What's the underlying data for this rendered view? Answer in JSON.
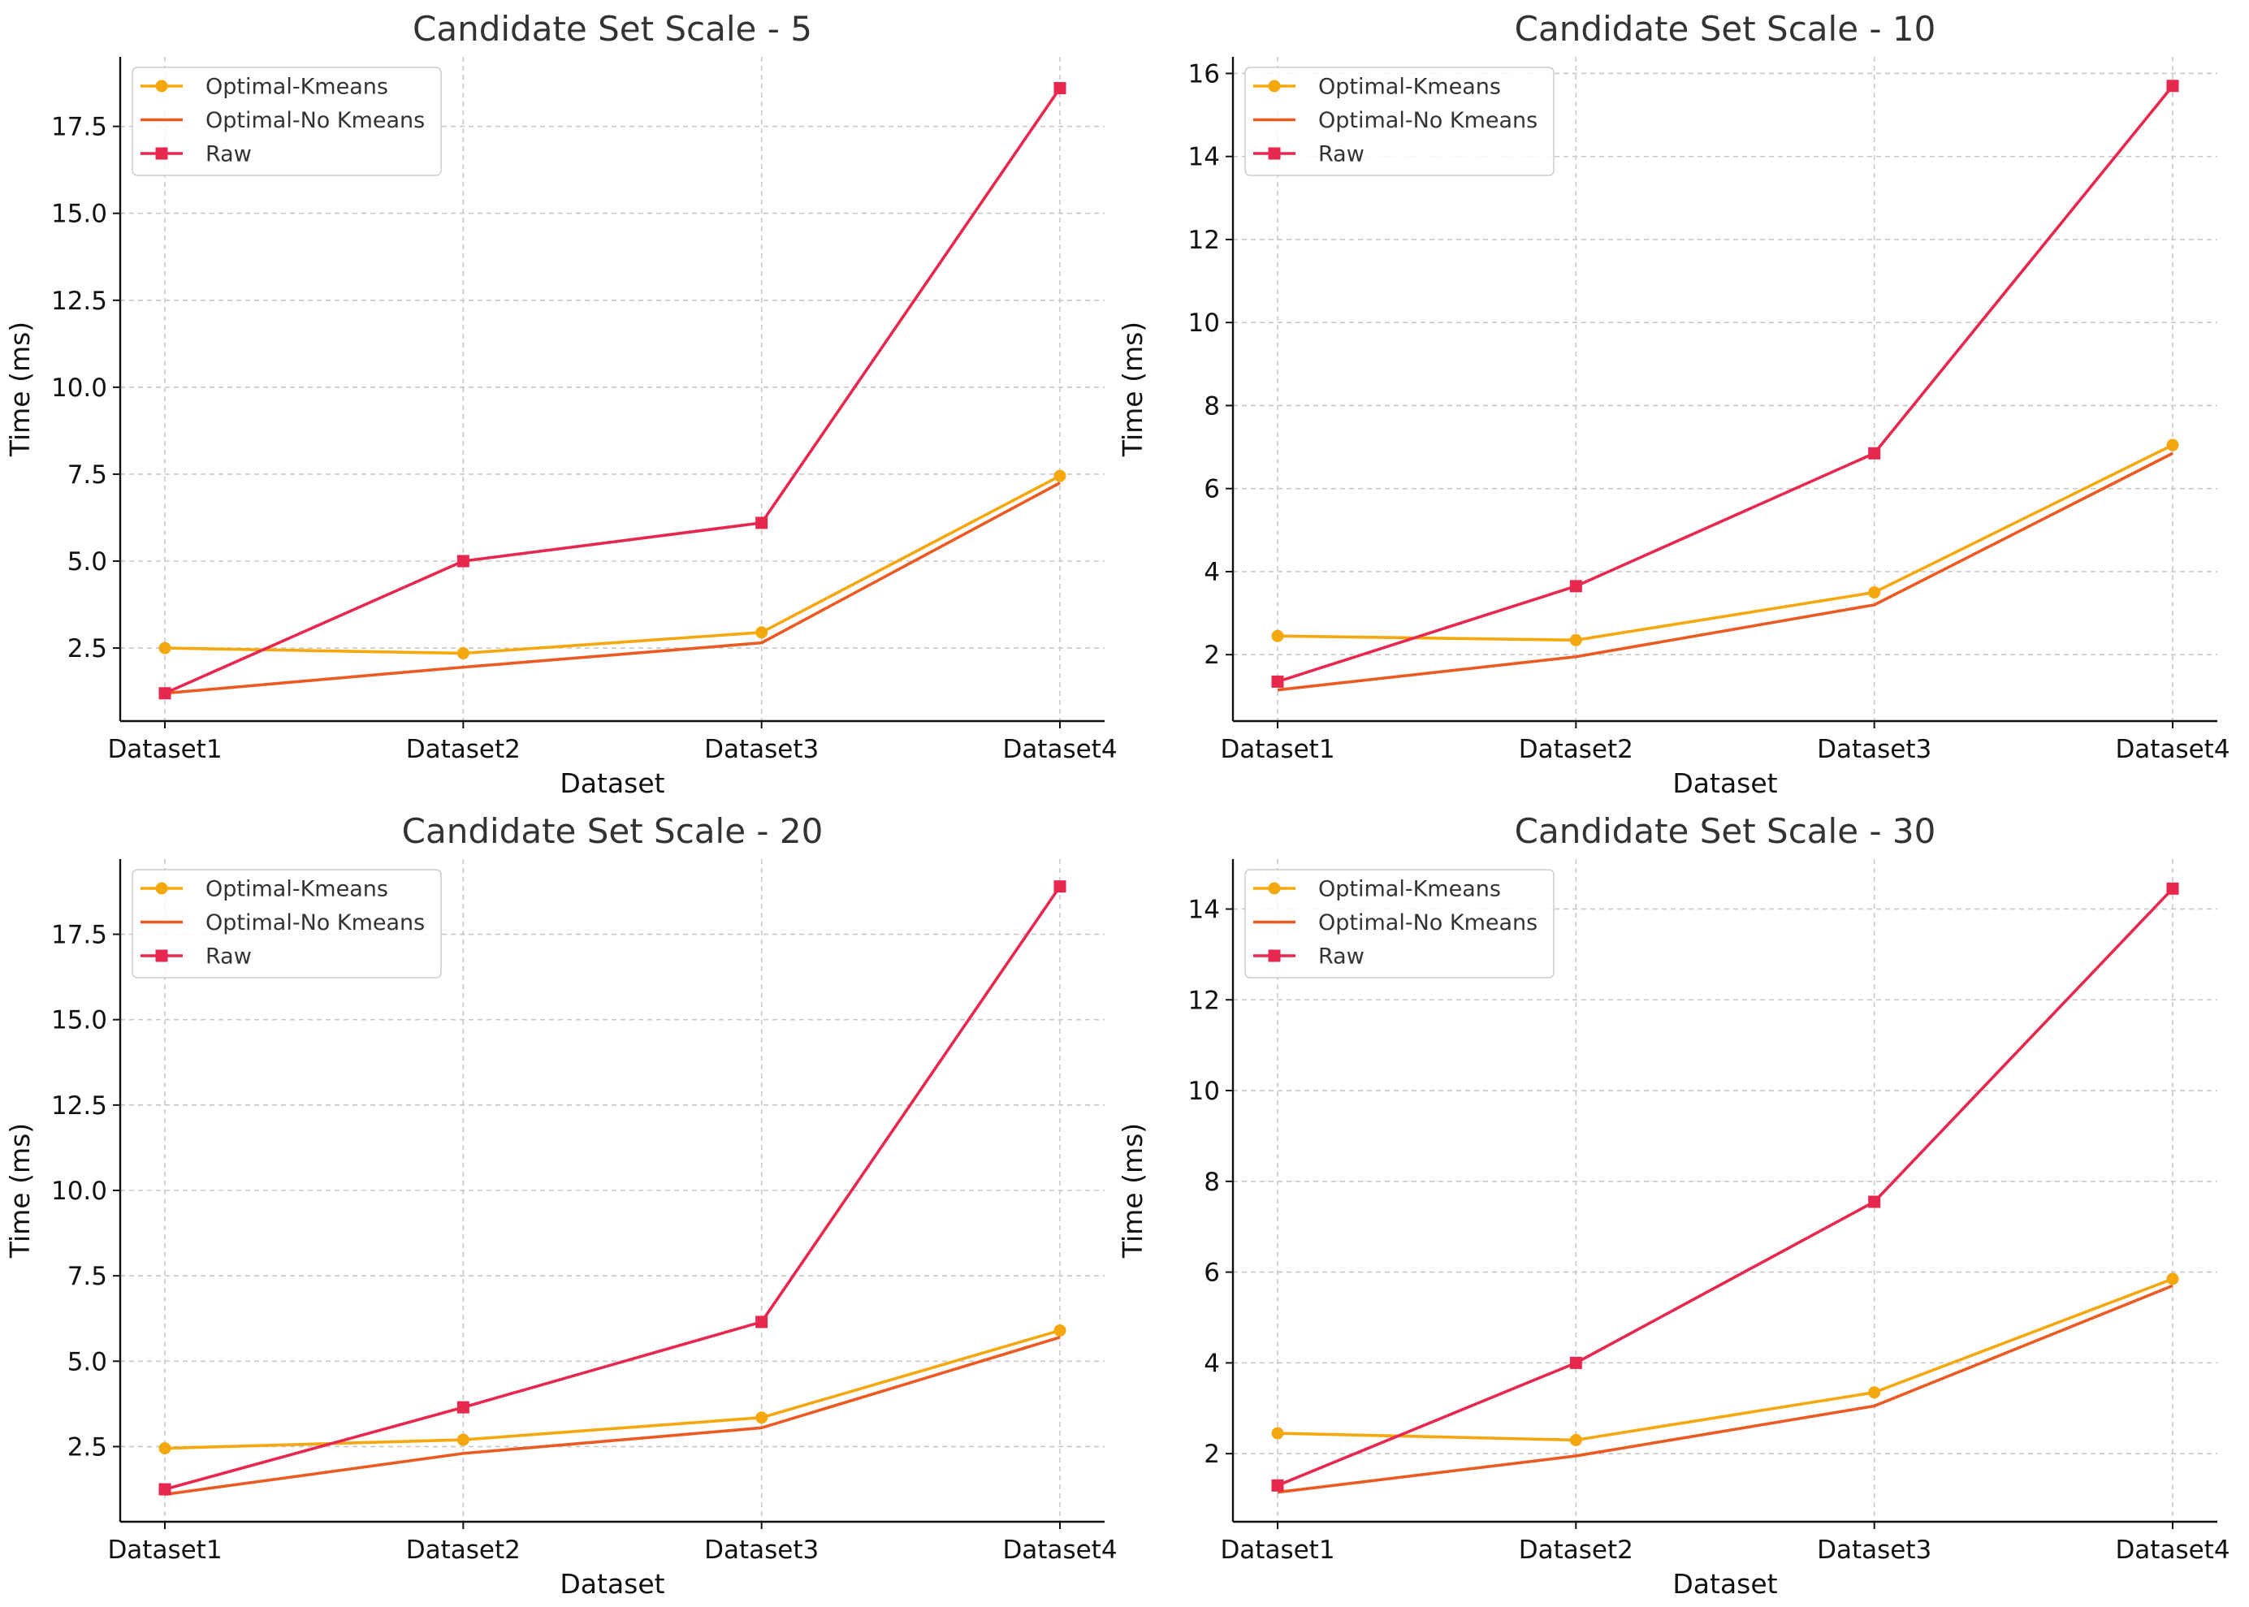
{
  "colors": {
    "Optimal-Kmeans": "#F5A70E",
    "Optimal-No Kmeans": "#EC5A22",
    "Raw": "#E8274E"
  },
  "chart_data": [
    {
      "type": "line",
      "title": "Candidate Set Scale - 5",
      "xlabel": "Dataset",
      "ylabel": "Time (ms)",
      "categories": [
        "Dataset1",
        "Dataset2",
        "Dataset3",
        "Dataset4"
      ],
      "ylim": [
        0.4,
        19.5
      ],
      "yticks": [
        2.5,
        5.0,
        7.5,
        10.0,
        12.5,
        15.0,
        17.5
      ],
      "ytick_decimals": 1,
      "grid": true,
      "legend_position": "upper-left",
      "series": [
        {
          "name": "Optimal-Kmeans",
          "marker": "circle",
          "values": [
            2.5,
            2.35,
            2.95,
            7.45
          ]
        },
        {
          "name": "Optimal-No Kmeans",
          "marker": "none",
          "values": [
            1.2,
            1.95,
            2.65,
            7.25
          ]
        },
        {
          "name": "Raw",
          "marker": "square",
          "values": [
            1.2,
            5.0,
            6.1,
            18.6
          ]
        }
      ]
    },
    {
      "type": "line",
      "title": "Candidate Set Scale - 10",
      "xlabel": "Dataset",
      "ylabel": "Time (ms)",
      "categories": [
        "Dataset1",
        "Dataset2",
        "Dataset3",
        "Dataset4"
      ],
      "ylim": [
        0.4,
        16.4
      ],
      "yticks": [
        2,
        4,
        6,
        8,
        10,
        12,
        14,
        16
      ],
      "ytick_decimals": 0,
      "grid": true,
      "legend_position": "upper-left",
      "series": [
        {
          "name": "Optimal-Kmeans",
          "marker": "circle",
          "values": [
            2.45,
            2.35,
            3.5,
            7.05
          ]
        },
        {
          "name": "Optimal-No Kmeans",
          "marker": "none",
          "values": [
            1.15,
            1.95,
            3.2,
            6.85
          ]
        },
        {
          "name": "Raw",
          "marker": "square",
          "values": [
            1.35,
            3.65,
            6.85,
            15.7
          ]
        }
      ]
    },
    {
      "type": "line",
      "title": "Candidate Set Scale - 20",
      "xlabel": "Dataset",
      "ylabel": "Time (ms)",
      "categories": [
        "Dataset1",
        "Dataset2",
        "Dataset3",
        "Dataset4"
      ],
      "ylim": [
        0.3,
        19.7
      ],
      "yticks": [
        2.5,
        5.0,
        7.5,
        10.0,
        12.5,
        15.0,
        17.5
      ],
      "ytick_decimals": 1,
      "grid": true,
      "legend_position": "upper-left",
      "series": [
        {
          "name": "Optimal-Kmeans",
          "marker": "circle",
          "values": [
            2.45,
            2.7,
            3.35,
            5.9
          ]
        },
        {
          "name": "Optimal-No Kmeans",
          "marker": "none",
          "values": [
            1.1,
            2.3,
            3.05,
            5.7
          ]
        },
        {
          "name": "Raw",
          "marker": "square",
          "values": [
            1.25,
            3.65,
            6.15,
            18.9
          ]
        }
      ]
    },
    {
      "type": "line",
      "title": "Candidate Set Scale - 30",
      "xlabel": "Dataset",
      "ylabel": "Time (ms)",
      "categories": [
        "Dataset1",
        "Dataset2",
        "Dataset3",
        "Dataset4"
      ],
      "ylim": [
        0.5,
        15.1
      ],
      "yticks": [
        2,
        4,
        6,
        8,
        10,
        12,
        14
      ],
      "ytick_decimals": 0,
      "grid": true,
      "legend_position": "upper-left",
      "series": [
        {
          "name": "Optimal-Kmeans",
          "marker": "circle",
          "values": [
            2.45,
            2.3,
            3.35,
            5.85
          ]
        },
        {
          "name": "Optimal-No Kmeans",
          "marker": "none",
          "values": [
            1.15,
            1.95,
            3.05,
            5.7
          ]
        },
        {
          "name": "Raw",
          "marker": "square",
          "values": [
            1.3,
            4.0,
            7.55,
            14.45
          ]
        }
      ]
    }
  ]
}
